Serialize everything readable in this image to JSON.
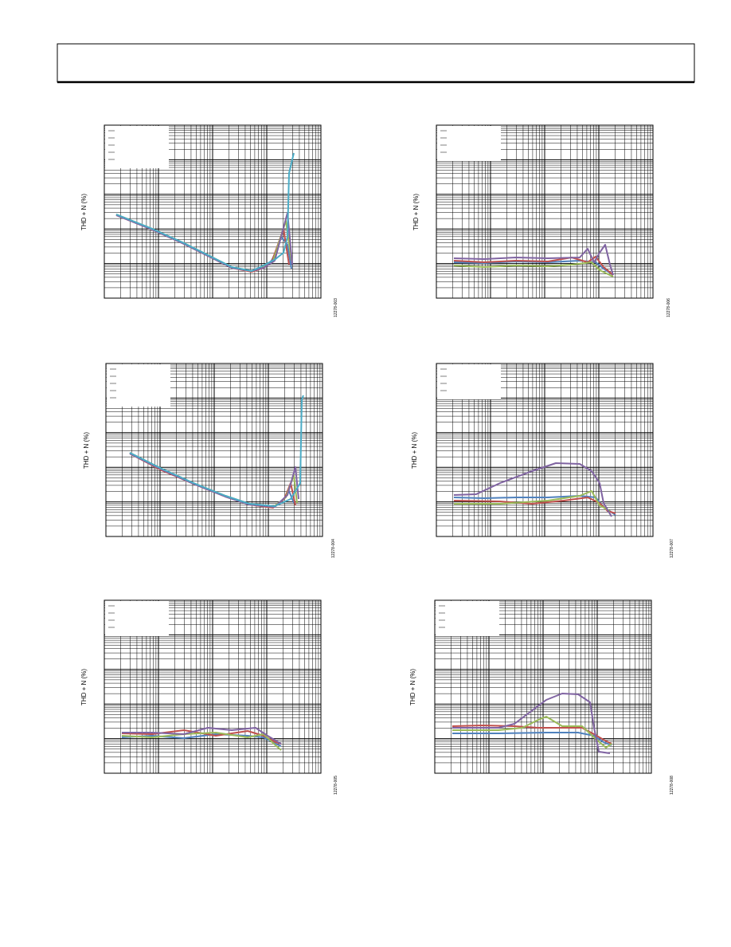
{
  "figures": [
    {
      "y_label": "THD + N (%)",
      "figure_id": "12278-003"
    },
    {
      "y_label": "THD + N (%)",
      "figure_id": "12278-006"
    },
    {
      "y_label": "THD + N (%)",
      "figure_id": "12278-004"
    },
    {
      "y_label": "THD + N (%)",
      "figure_id": "12278-007"
    },
    {
      "y_label": "THD + N (%)",
      "figure_id": "12278-005"
    },
    {
      "y_label": "THD + N (%)",
      "figure_id": "12278-008"
    }
  ]
}
